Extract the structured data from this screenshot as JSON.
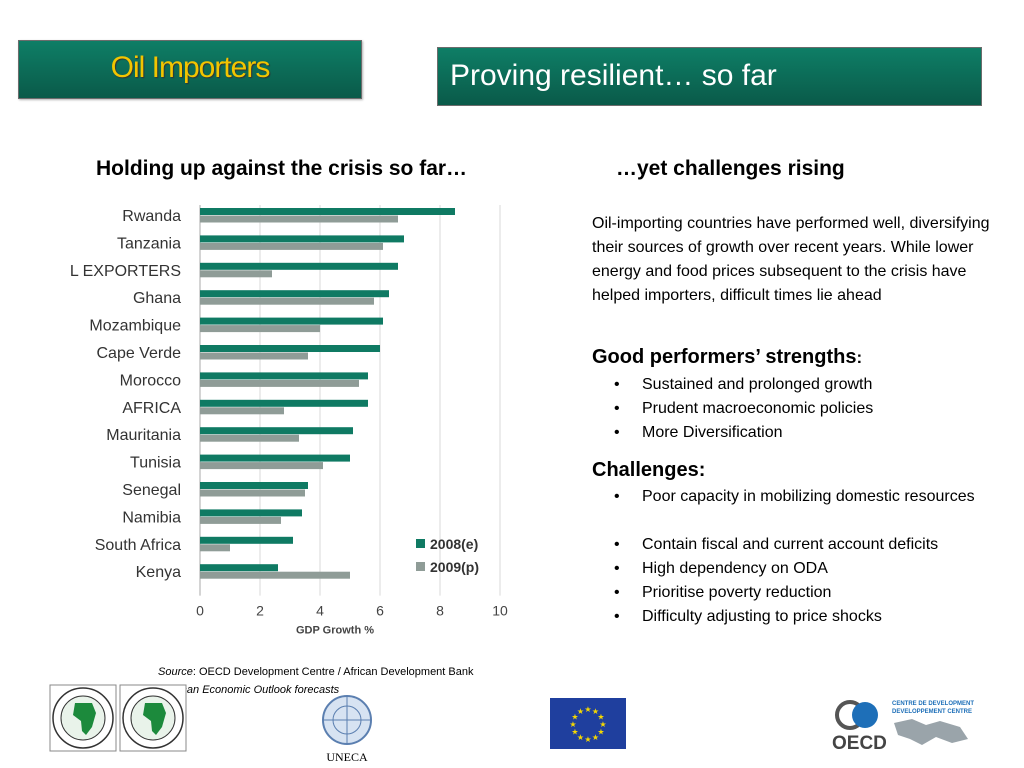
{
  "header": {
    "tag": "Oil Importers",
    "title": "Proving resilient… so far"
  },
  "left_heading": "Holding up against the crisis so far…",
  "right_heading": "…yet challenges rising",
  "chart_data": {
    "type": "bar",
    "orientation": "horizontal",
    "categories": [
      "Rwanda",
      "Tanzania",
      "OIL EXPORTERS",
      "Ghana",
      "Mozambique",
      "Cape Verde",
      "Morocco",
      "AFRICA",
      "Mauritania",
      "Tunisia",
      "Senegal",
      "Namibia",
      "South Africa",
      "Kenya"
    ],
    "series": [
      {
        "name": "2008(e)",
        "color": "#0f7a63",
        "values": [
          8.5,
          6.8,
          6.6,
          6.3,
          6.1,
          6.0,
          5.6,
          5.6,
          5.1,
          5.0,
          3.6,
          3.4,
          3.1,
          2.6
        ]
      },
      {
        "name": "2009(p)",
        "color": "#8f9c97",
        "values": [
          6.6,
          6.1,
          2.4,
          5.8,
          4.0,
          3.6,
          5.3,
          2.8,
          3.3,
          4.1,
          3.5,
          2.7,
          1.0,
          5.0
        ]
      }
    ],
    "xlabel": "GDP Growth %",
    "xlim": [
      0,
      10
    ],
    "xticks": [
      "0",
      "2",
      "4",
      "6",
      "8",
      "10"
    ],
    "grid": true,
    "legend_position": "bottom-right"
  },
  "right_panel": {
    "intro": "Oil-importing countries have performed well, diversifying their sources of growth over recent years. While lower energy and food prices subsequent to the crisis have helped importers, difficult times lie ahead",
    "strengths_heading": "Good performers’ strengths",
    "strengths_colon": ":",
    "strengths": [
      "Sustained and prolonged growth",
      "Prudent macroeconomic policies",
      "More Diversification"
    ],
    "challenges_heading": "Challenges:",
    "challenges": [
      "Poor capacity in mobilizing domestic resources",
      "Contain fiscal and current account deficits",
      "High dependency on ODA",
      "Prioritise poverty reduction",
      "Difficulty adjusting to price shocks"
    ],
    "bullet": "•"
  },
  "source": {
    "label": "Source",
    "text": ": OECD Development Centre / African Development Bank",
    "note": "* African Economic Outlook forecasts"
  },
  "logos": {
    "uneca_label": "UNECA",
    "oecd_label": "OECD",
    "oecd_centre_line1": "CENTRE DE DEVELOPMENT",
    "oecd_centre_line2": "DEVELOPPEMENT CENTRE",
    "eu_color": "#1f3f9e",
    "eu_star_color": "#f5d800"
  }
}
